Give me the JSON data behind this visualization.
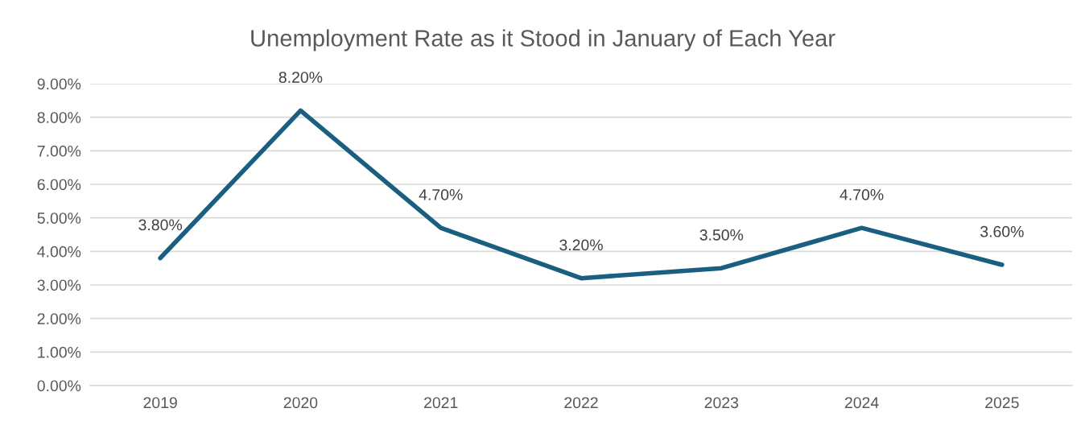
{
  "chart_data": {
    "type": "line",
    "title": "Unemployment Rate as it Stood in January of Each Year",
    "categories": [
      "2019",
      "2020",
      "2021",
      "2022",
      "2023",
      "2024",
      "2025"
    ],
    "series": [
      {
        "color": "#1a5e80",
        "values": [
          3.8,
          8.2,
          4.7,
          3.2,
          3.5,
          4.7,
          3.6
        ],
        "value_labels": [
          "3.80%",
          "8.20%",
          "4.70%",
          "3.20%",
          "3.50%",
          "4.70%",
          "3.60%"
        ]
      }
    ],
    "ylim": [
      0,
      9
    ],
    "yticks": [
      {
        "value": 0,
        "label": "0.00%"
      },
      {
        "value": 1,
        "label": "1.00%"
      },
      {
        "value": 2,
        "label": "2.00%"
      },
      {
        "value": 3,
        "label": "3.00%"
      },
      {
        "value": 4,
        "label": "4.00%"
      },
      {
        "value": 5,
        "label": "5.00%"
      },
      {
        "value": 6,
        "label": "6.00%"
      },
      {
        "value": 7,
        "label": "7.00%"
      },
      {
        "value": 8,
        "label": "8.00%"
      },
      {
        "value": 9,
        "label": "9.00%"
      }
    ],
    "grid": "y",
    "legend": false,
    "marker": "none",
    "line_style": "solid"
  }
}
